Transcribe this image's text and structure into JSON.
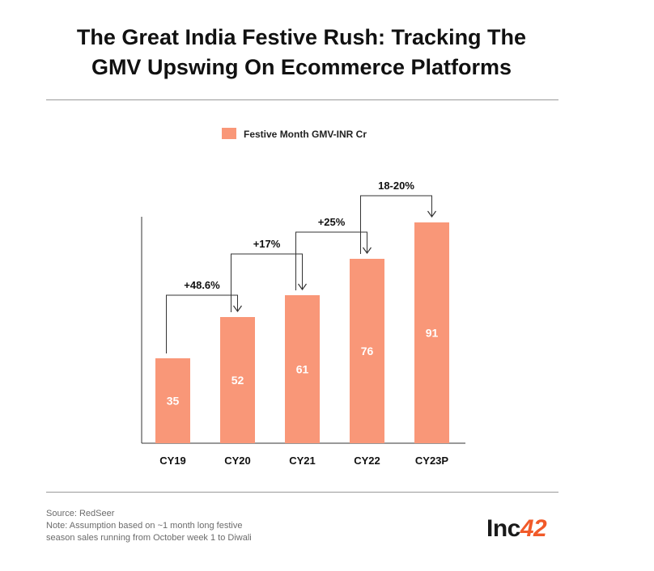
{
  "title_line1": "The Great India Festive Rush: Tracking The",
  "title_line2": "GMV Upswing On Ecommerce Platforms",
  "chart_data": {
    "type": "bar",
    "title": "The Great India Festive Rush: Tracking The GMV Upswing On Ecommerce Platforms",
    "legend": "Festive Month GMV-INR Cr",
    "legend_position": "top-center",
    "categories": [
      "CY19",
      "CY20",
      "CY21",
      "CY22",
      "CY23P"
    ],
    "series": [
      {
        "name": "Festive Month GMV-INR Cr",
        "values": [
          35,
          52,
          61,
          76,
          91
        ]
      }
    ],
    "growth_annotations": [
      "+48.6%",
      "+17%",
      "+25%",
      "18-20%"
    ],
    "ylim": [
      0,
      100
    ],
    "xlabel": "",
    "ylabel": "",
    "grid": false,
    "bar_color": "#f99778"
  },
  "footer": {
    "source": "Source: RedSeer",
    "note_line1": "Note: Assumption based on ~1 month long festive",
    "note_line2": "season sales running from October week 1 to Diwali"
  },
  "logo": {
    "text": "Inc",
    "number": "42"
  }
}
